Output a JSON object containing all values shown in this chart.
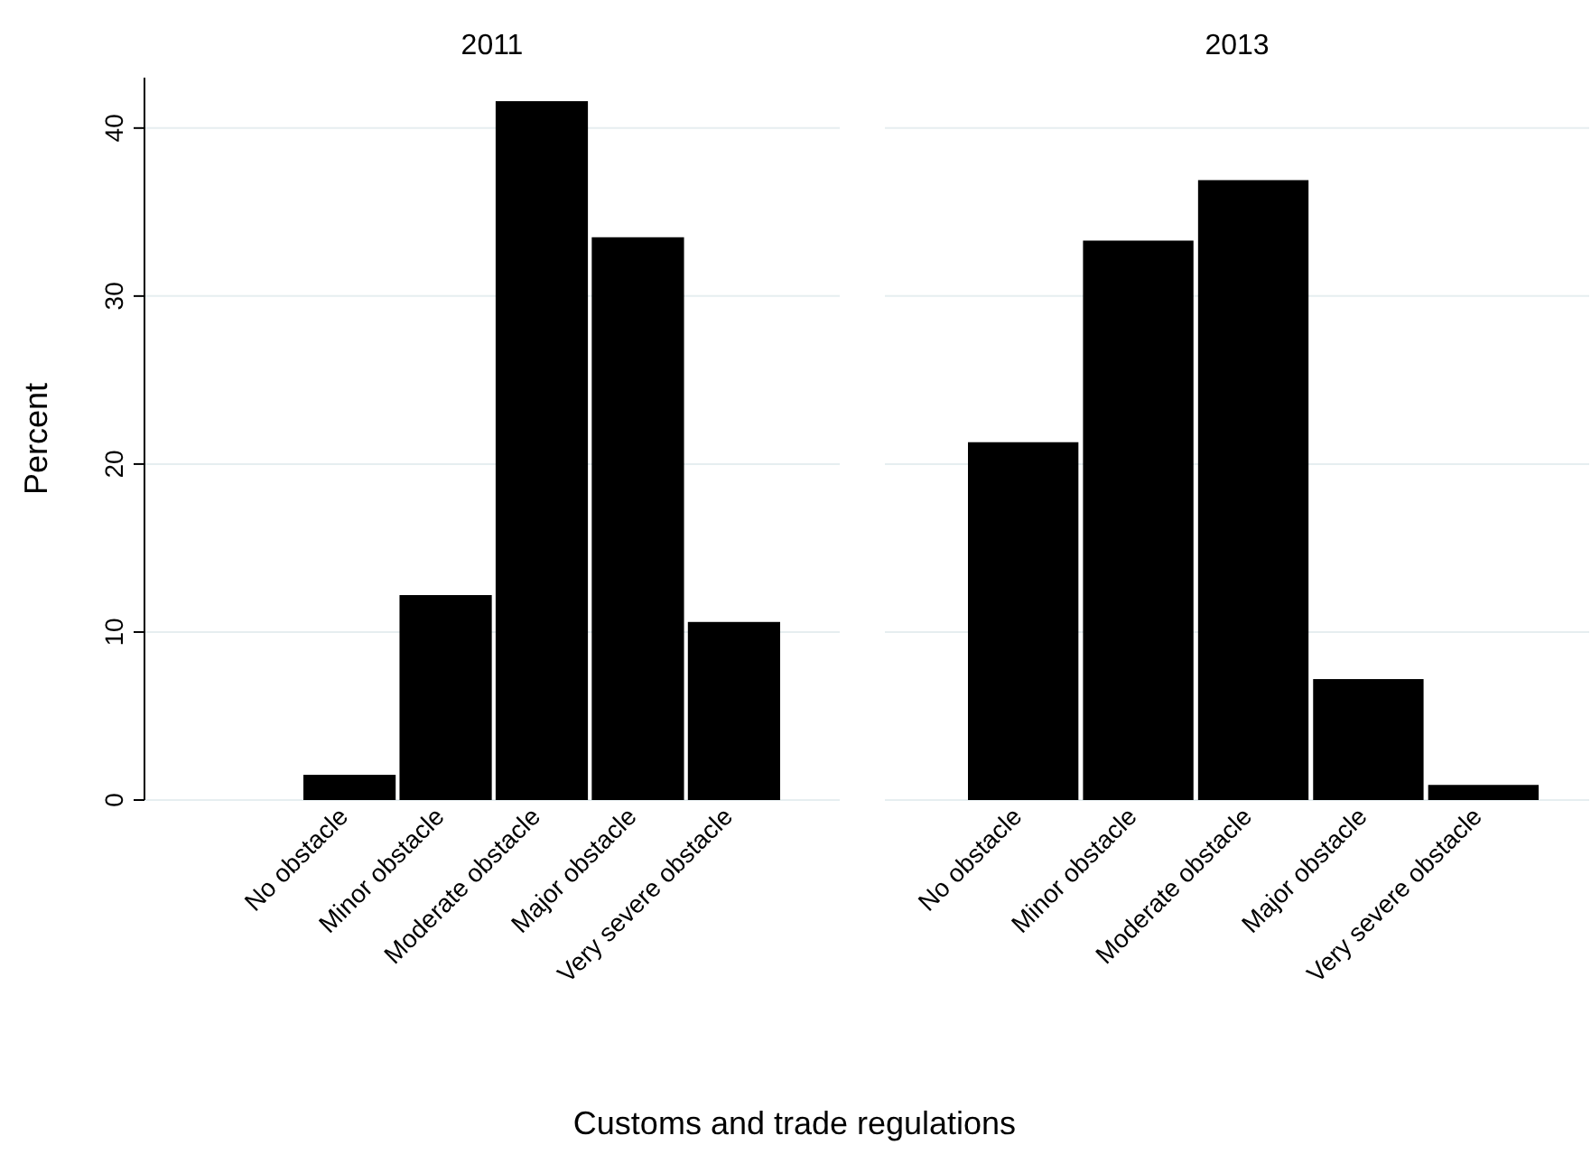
{
  "chart_data": [
    {
      "type": "bar",
      "title": "2011",
      "ylabel": "Percent",
      "xlabel": "Customs and trade regulations",
      "categories": [
        "No obstacle",
        "Minor obstacle",
        "Moderate obstacle",
        "Major obstacle",
        "Very severe obstacle"
      ],
      "values": [
        1.5,
        12.2,
        41.6,
        33.5,
        10.6
      ],
      "color": "#000000",
      "ylim": [
        0,
        43
      ],
      "yticks": [
        0,
        10,
        20,
        30,
        40
      ],
      "grid": "y"
    },
    {
      "type": "bar",
      "title": "2013",
      "categories": [
        "No obstacle",
        "Minor obstacle",
        "Moderate obstacle",
        "Major obstacle",
        "Very severe obstacle"
      ],
      "values": [
        21.3,
        33.3,
        36.9,
        7.2,
        0.9
      ],
      "color": "#000000",
      "yticks": [
        0,
        10,
        20,
        30,
        40
      ],
      "grid": "y",
      "tick_labels": "x"
    }
  ]
}
